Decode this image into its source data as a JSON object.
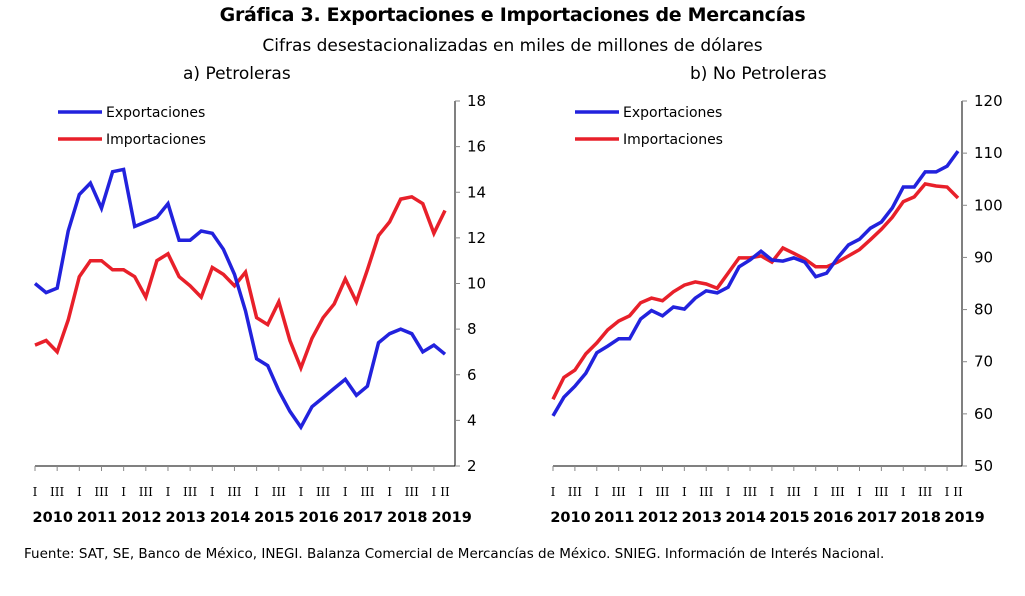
{
  "header": {
    "title": "Gráfica 3. Exportaciones e Importaciones de Mercancías",
    "subtitle": "Cifras desestacionalizadas en miles de millones de dólares"
  },
  "colors": {
    "exports": "#2222dd",
    "imports": "#e8202a",
    "axis": "#000000"
  },
  "footnote": "Fuente: SAT, SE, Banco de México, INEGI. Balanza Comercial de Mercancías de México. SNIEG. Información de Interés Nacional.",
  "chart_data": [
    {
      "type": "line",
      "title": "a) Petroleras",
      "xlabel": "",
      "ylabel": "",
      "y_axis_side": "right",
      "ylim": [
        2,
        18
      ],
      "yticks": [
        2,
        4,
        6,
        8,
        10,
        12,
        14,
        16,
        18
      ],
      "ytick_labels": [
        "2",
        "4",
        "6",
        "8",
        "10",
        "12",
        "14",
        "16",
        "18"
      ],
      "grid": false,
      "legend": {
        "placement": "top-left",
        "entries": [
          "Exportaciones",
          "Importaciones"
        ]
      },
      "x_start": "2010 I",
      "x_end": "2019 II",
      "quarter_labels": [
        "I",
        "III",
        "I",
        "III",
        "I",
        "III",
        "I",
        "III",
        "I",
        "III",
        "I",
        "III",
        "I",
        "III",
        "I",
        "III",
        "I",
        "III",
        "I",
        "II"
      ],
      "year_labels": [
        "2010",
        "2011",
        "2012",
        "2013",
        "2014",
        "2015",
        "2016",
        "2017",
        "2018",
        "2019"
      ],
      "series": [
        {
          "name": "Exportaciones",
          "color": "#2222dd",
          "values": [
            10.0,
            9.6,
            9.8,
            12.3,
            13.9,
            14.4,
            13.3,
            14.9,
            15.0,
            12.5,
            12.7,
            12.9,
            13.5,
            11.9,
            11.9,
            12.3,
            12.2,
            11.5,
            10.4,
            8.8,
            6.7,
            6.4,
            5.3,
            4.4,
            3.7,
            4.6,
            5.0,
            5.4,
            5.8,
            5.1,
            5.5,
            7.4,
            7.8,
            8.0,
            7.8,
            7.0,
            7.3,
            6.9
          ]
        },
        {
          "name": "Importaciones",
          "color": "#e8202a",
          "values": [
            7.3,
            7.5,
            7.0,
            8.4,
            10.3,
            11.0,
            11.0,
            10.6,
            10.6,
            10.3,
            9.4,
            11.0,
            11.3,
            10.3,
            9.9,
            9.4,
            10.7,
            10.4,
            9.9,
            10.5,
            8.5,
            8.2,
            9.2,
            7.5,
            6.3,
            7.6,
            8.5,
            9.1,
            10.2,
            9.2,
            10.6,
            12.1,
            12.7,
            13.7,
            13.8,
            13.5,
            12.2,
            13.2
          ]
        }
      ]
    },
    {
      "type": "line",
      "title": "b) No Petroleras",
      "xlabel": "",
      "ylabel": "",
      "y_axis_side": "right",
      "ylim": [
        50,
        120
      ],
      "yticks": [
        50,
        60,
        70,
        80,
        90,
        100,
        110,
        120
      ],
      "ytick_labels": [
        "50",
        "60",
        "70",
        "80",
        "90",
        "100",
        "110",
        "120"
      ],
      "grid": false,
      "legend": {
        "placement": "top-left",
        "entries": [
          "Exportaciones",
          "Importaciones"
        ]
      },
      "x_start": "2010 I",
      "x_end": "2019 II",
      "quarter_labels": [
        "I",
        "III",
        "I",
        "III",
        "I",
        "III",
        "I",
        "III",
        "I",
        "III",
        "I",
        "III",
        "I",
        "III",
        "I",
        "III",
        "I",
        "III",
        "I",
        "II"
      ],
      "year_labels": [
        "2010",
        "2011",
        "2012",
        "2013",
        "2014",
        "2015",
        "2016",
        "2017",
        "2018",
        "2019"
      ],
      "series": [
        {
          "name": "Exportaciones",
          "color": "#2222dd",
          "values": [
            59.6,
            63.2,
            65.3,
            67.8,
            71.7,
            73.0,
            74.4,
            74.4,
            78.2,
            79.8,
            78.8,
            80.5,
            80.1,
            82.2,
            83.6,
            83.2,
            84.3,
            88.2,
            89.5,
            91.2,
            89.5,
            89.3,
            89.9,
            89.1,
            86.3,
            87.0,
            89.9,
            92.4,
            93.5,
            95.6,
            96.8,
            99.5,
            103.5,
            103.5,
            106.4,
            106.4,
            107.5,
            110.4
          ]
        },
        {
          "name": "Importaciones",
          "color": "#e8202a",
          "values": [
            62.8,
            67.0,
            68.4,
            71.5,
            73.6,
            76.1,
            77.8,
            78.8,
            81.3,
            82.2,
            81.7,
            83.4,
            84.7,
            85.3,
            84.9,
            84.1,
            87.0,
            89.9,
            89.9,
            90.3,
            89.1,
            91.8,
            90.8,
            89.7,
            88.2,
            88.2,
            89.1,
            90.3,
            91.5,
            93.4,
            95.4,
            97.7,
            100.7,
            101.6,
            104.1,
            103.7,
            103.5,
            101.4
          ]
        }
      ]
    }
  ]
}
